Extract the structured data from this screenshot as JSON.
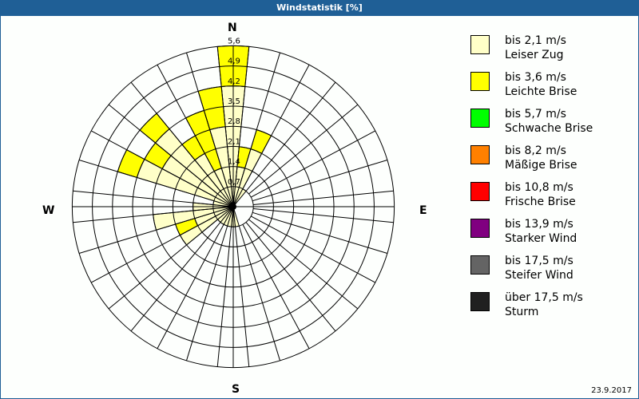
{
  "window": {
    "title": "Windstatistik [%]"
  },
  "compass": {
    "n": "N",
    "e": "E",
    "s": "S",
    "w": "W"
  },
  "footer": {
    "date": "23.9.2017"
  },
  "legend": [
    {
      "range": "bis 2,1 m/s",
      "name": "Leiser Zug",
      "color": "#ffffc8"
    },
    {
      "range": "bis 3,6 m/s",
      "name": "Leichte Brise",
      "color": "#ffff00"
    },
    {
      "range": "bis 5,7 m/s",
      "name": "Schwache Brise",
      "color": "#00ff00"
    },
    {
      "range": "bis 8,2 m/s",
      "name": "Mäßige Brise",
      "color": "#ff8000"
    },
    {
      "range": "bis 10,8 m/s",
      "name": "Frische Brise",
      "color": "#ff0000"
    },
    {
      "range": "bis 13,9 m/s",
      "name": "Starker Wind",
      "color": "#800080"
    },
    {
      "range": "bis 17,5 m/s",
      "name": "Steifer Wind",
      "color": "#646464"
    },
    {
      "range": "über 17,5 m/s",
      "name": "Sturm",
      "color": "#202020"
    }
  ],
  "chart_data": {
    "type": "wind-rose",
    "title": "Windstatistik [%]",
    "date": "23.9.2017",
    "unit": "%",
    "ring_labels": [
      "0,7",
      "1,4",
      "2,1",
      "2,8",
      "3,5",
      "4,2",
      "4,9",
      "5,6"
    ],
    "rmax": 5.6,
    "grid": true,
    "legend_position": "right",
    "directions_deg": [
      0,
      11.25,
      22.5,
      33.75,
      45,
      56.25,
      67.5,
      78.75,
      90,
      101.25,
      112.5,
      123.75,
      135,
      146.25,
      157.5,
      168.75,
      180,
      191.25,
      202.5,
      213.75,
      225,
      236.25,
      247.5,
      258.75,
      270,
      281.25,
      292.5,
      303.75,
      315,
      326.25,
      337.5,
      348.75
    ],
    "series": [
      {
        "name": "bis 2,1 m/s Leiser Zug",
        "color": "#ffffc8",
        "values": [
          4.2,
          1.4,
          2.1,
          0.7,
          0,
          0,
          0,
          0,
          0,
          0,
          0,
          0,
          0,
          0,
          0,
          0.7,
          0.7,
          0.7,
          0.7,
          0.7,
          0.7,
          2.1,
          1.4,
          2.8,
          1.4,
          0.7,
          3.5,
          2.8,
          3.5,
          2.1,
          1.4,
          2.8
        ]
      },
      {
        "name": "bis 3,6 m/s Leichte Brise",
        "color": "#ffff00",
        "values": [
          1.4,
          0.7,
          0.7,
          0,
          0,
          0,
          0,
          0,
          0,
          0,
          0,
          0,
          0,
          0,
          0,
          0,
          0,
          0,
          0,
          0,
          0,
          0,
          0.7,
          0,
          0,
          0,
          0.7,
          0.7,
          0.7,
          0.7,
          2.1,
          1.4
        ]
      },
      {
        "name": "bis 5,7 m/s Schwache Brise",
        "color": "#00ff00",
        "values": []
      },
      {
        "name": "bis 8,2 m/s Mäßige Brise",
        "color": "#ff8000",
        "values": []
      },
      {
        "name": "bis 10,8 m/s Frische Brise",
        "color": "#ff0000",
        "values": []
      },
      {
        "name": "bis 13,9 m/s Starker Wind",
        "color": "#800080",
        "values": []
      },
      {
        "name": "bis 17,5 m/s Steifer Wind",
        "color": "#646464",
        "values": []
      },
      {
        "name": "über 17,5 m/s Sturm",
        "color": "#202020",
        "values": []
      }
    ]
  }
}
